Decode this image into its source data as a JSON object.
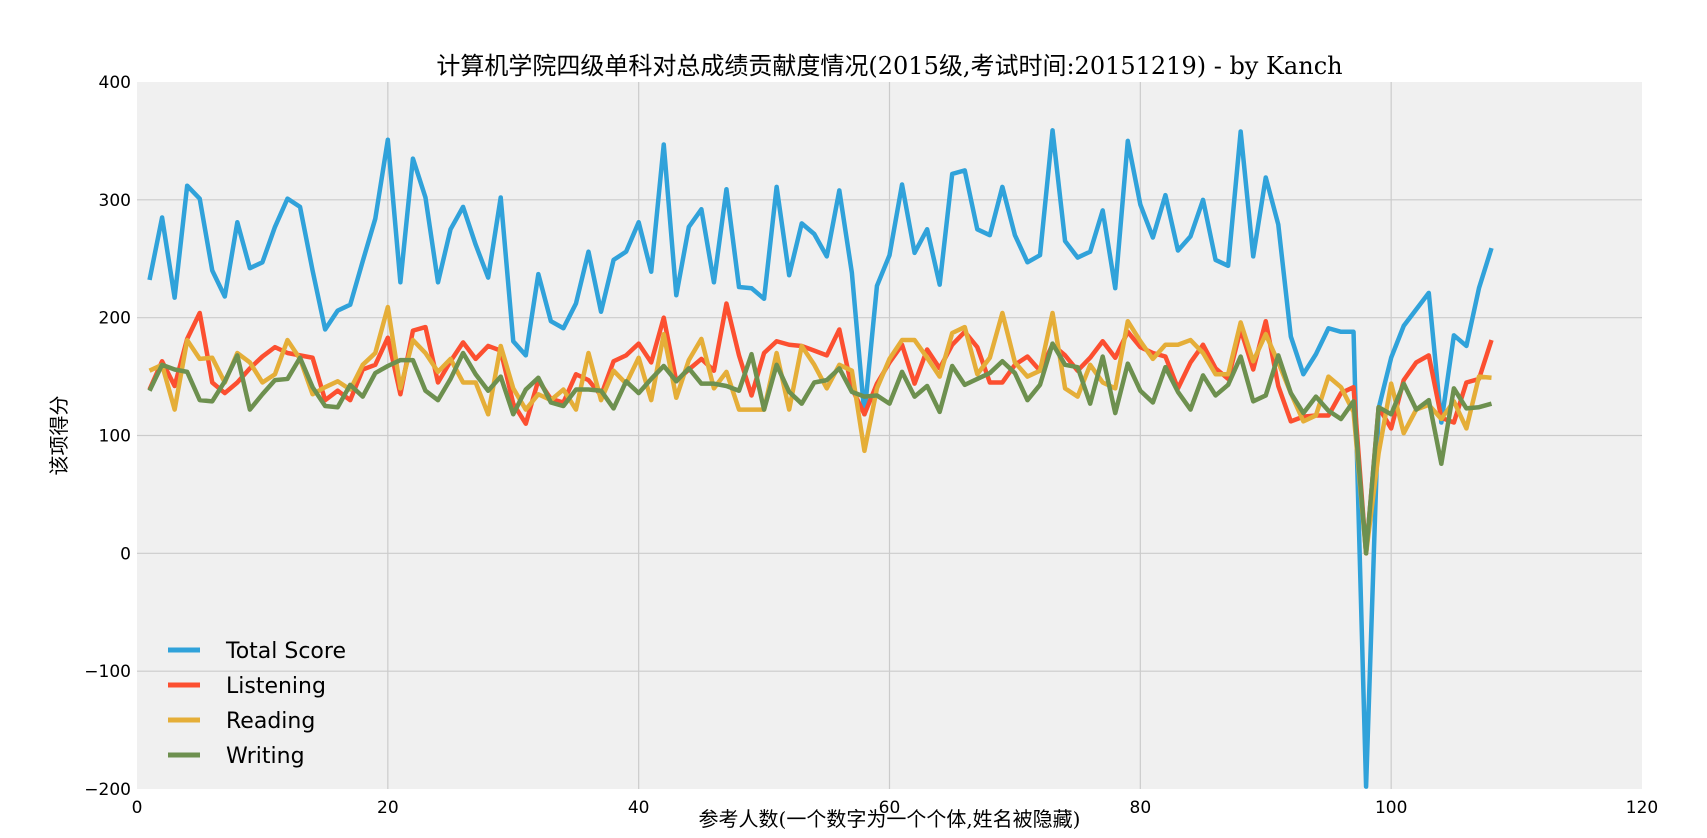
{
  "chart_data": {
    "type": "line",
    "title": "计算机学院四级单科对总成绩贡献度情况(2015级,考试时间:20151219) - by Kanch",
    "xlabel": "参考人数(一个数字为一个个体,姓名被隐藏)",
    "ylabel": "该项得分",
    "xlim": [
      0,
      120
    ],
    "ylim": [
      -200,
      400
    ],
    "xticks": [
      0,
      20,
      40,
      60,
      80,
      100,
      120
    ],
    "yticks": [
      -200,
      -100,
      0,
      100,
      200,
      300,
      400
    ],
    "xtick_labels": [
      "0",
      "20",
      "40",
      "60",
      "80",
      "100",
      "120"
    ],
    "ytick_labels": [
      "−200",
      "−100",
      "0",
      "100",
      "200",
      "300",
      "400"
    ],
    "grid": true,
    "legend_position": "lower-left",
    "x": [
      1,
      2,
      3,
      4,
      5,
      6,
      7,
      8,
      9,
      10,
      11,
      12,
      13,
      14,
      15,
      16,
      17,
      18,
      19,
      20,
      21,
      22,
      23,
      24,
      25,
      26,
      27,
      28,
      29,
      30,
      31,
      32,
      33,
      34,
      35,
      36,
      37,
      38,
      39,
      40,
      41,
      42,
      43,
      44,
      45,
      46,
      47,
      48,
      49,
      50,
      51,
      52,
      53,
      54,
      55,
      56,
      57,
      58,
      59,
      60,
      61,
      62,
      63,
      64,
      65,
      66,
      67,
      68,
      69,
      70,
      71,
      72,
      73,
      74,
      75,
      76,
      77,
      78,
      79,
      80,
      81,
      82,
      83,
      84,
      85,
      86,
      87,
      88,
      89,
      90,
      91,
      92,
      93,
      94,
      95,
      96,
      97,
      98,
      99,
      100,
      101,
      102,
      103,
      104,
      105,
      106,
      107,
      108
    ],
    "series": [
      {
        "name": "Total Score",
        "color": "#30a2da",
        "values": [
          232,
          285,
          217,
          312,
          301,
          240,
          218,
          281,
          242,
          247,
          277,
          301,
          294,
          240,
          190,
          206,
          211,
          248,
          284,
          351,
          230,
          335,
          302,
          230,
          275,
          294,
          262,
          234,
          302,
          180,
          168,
          237,
          197,
          191,
          212,
          256,
          205,
          249,
          256,
          281,
          239,
          347,
          219,
          277,
          292,
          230,
          309,
          226,
          225,
          216,
          311,
          236,
          280,
          271,
          252,
          308,
          238,
          118,
          227,
          253,
          313,
          255,
          275,
          228,
          322,
          325,
          275,
          270,
          311,
          270,
          247,
          253,
          359,
          265,
          251,
          256,
          291,
          225,
          350,
          296,
          268,
          304,
          257,
          269,
          300,
          249,
          244,
          358,
          252,
          319,
          279,
          184,
          152,
          169,
          191,
          188,
          188,
          -198,
          123,
          166,
          193,
          207,
          221,
          111,
          185,
          176,
          225,
          259
        ]
      },
      {
        "name": "Listening",
        "color": "#fc4f30",
        "values": [
          139,
          163,
          142,
          182,
          204,
          145,
          136,
          145,
          157,
          167,
          175,
          170,
          168,
          166,
          130,
          138,
          130,
          156,
          160,
          183,
          135,
          189,
          192,
          145,
          163,
          179,
          165,
          176,
          172,
          127,
          110,
          147,
          131,
          128,
          152,
          147,
          134,
          163,
          168,
          178,
          162,
          200,
          146,
          156,
          165,
          155,
          212,
          168,
          134,
          170,
          180,
          177,
          176,
          172,
          168,
          190,
          140,
          118,
          144,
          162,
          177,
          144,
          173,
          157,
          177,
          188,
          175,
          145,
          145,
          160,
          167,
          155,
          177,
          168,
          155,
          166,
          180,
          166,
          188,
          175,
          170,
          167,
          140,
          162,
          177,
          157,
          148,
          190,
          156,
          197,
          142,
          112,
          116,
          117,
          117,
          136,
          141,
          0,
          124,
          106,
          147,
          162,
          168,
          115,
          111,
          145,
          148,
          181
        ]
      },
      {
        "name": "Reading",
        "color": "#e5ae38",
        "values": [
          155,
          160,
          122,
          181,
          165,
          166,
          145,
          170,
          162,
          145,
          152,
          181,
          165,
          135,
          141,
          146,
          139,
          160,
          170,
          209,
          140,
          181,
          170,
          154,
          165,
          145,
          145,
          118,
          176,
          140,
          122,
          135,
          130,
          139,
          122,
          170,
          130,
          155,
          144,
          166,
          130,
          186,
          132,
          164,
          182,
          140,
          154,
          122,
          122,
          122,
          170,
          122,
          176,
          160,
          140,
          160,
          155,
          87,
          140,
          165,
          181,
          181,
          166,
          150,
          187,
          192,
          152,
          166,
          204,
          162,
          150,
          155,
          204,
          140,
          133,
          160,
          145,
          140,
          197,
          180,
          165,
          177,
          177,
          181,
          170,
          152,
          152,
          196,
          163,
          186,
          162,
          136,
          112,
          117,
          150,
          141,
          120,
          0,
          85,
          144,
          102,
          122,
          126,
          114,
          129,
          106,
          150,
          149
        ]
      },
      {
        "name": "Writing",
        "color": "#6d904f",
        "values": [
          138,
          160,
          156,
          154,
          130,
          129,
          146,
          168,
          122,
          135,
          147,
          148,
          166,
          141,
          125,
          124,
          143,
          133,
          153,
          159,
          164,
          164,
          138,
          130,
          148,
          170,
          152,
          138,
          150,
          118,
          139,
          149,
          128,
          125,
          139,
          139,
          138,
          123,
          146,
          136,
          148,
          159,
          146,
          157,
          144,
          144,
          142,
          138,
          169,
          122,
          160,
          137,
          127,
          145,
          147,
          157,
          137,
          133,
          134,
          127,
          154,
          133,
          142,
          120,
          159,
          143,
          148,
          153,
          163,
          153,
          130,
          143,
          178,
          160,
          158,
          127,
          167,
          119,
          161,
          138,
          128,
          158,
          137,
          122,
          151,
          134,
          143,
          167,
          129,
          134,
          168,
          136,
          119,
          133,
          121,
          114,
          129,
          0,
          124,
          118,
          144,
          122,
          130,
          76,
          140,
          123,
          124,
          127
        ]
      }
    ]
  }
}
